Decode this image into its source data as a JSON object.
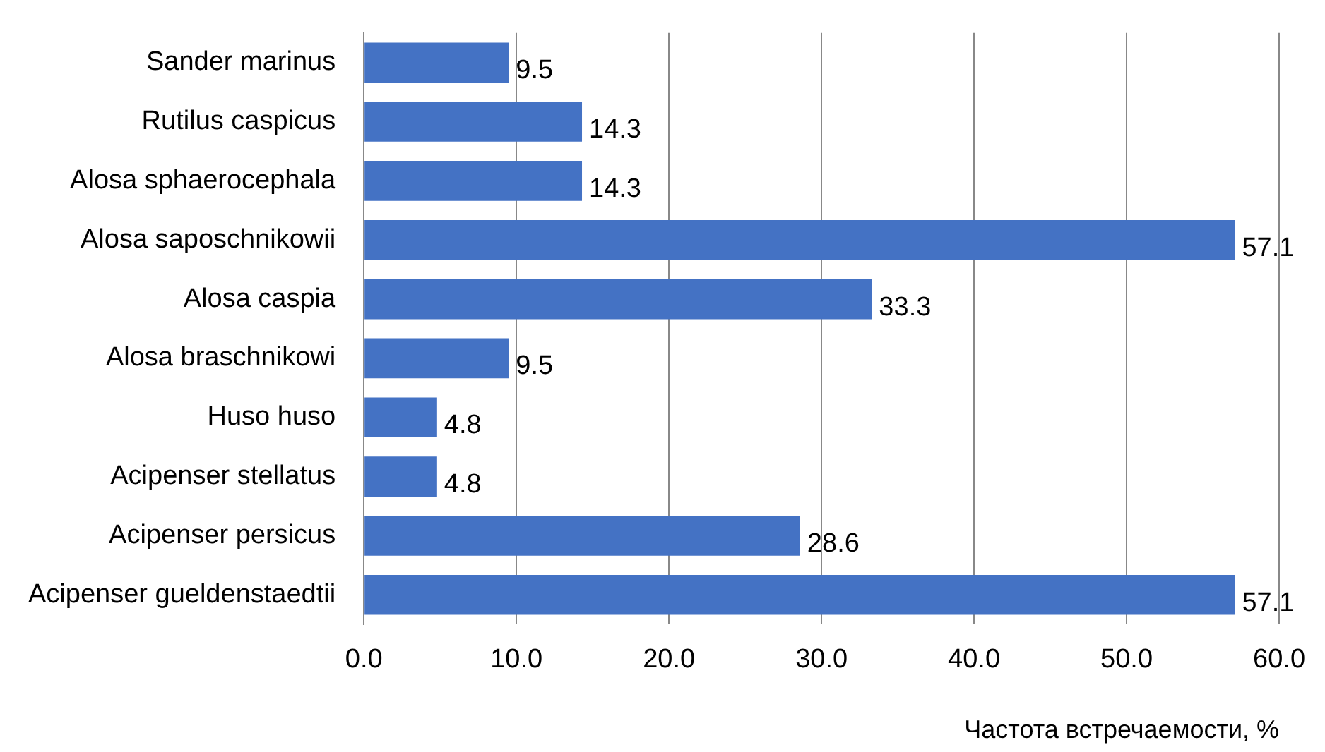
{
  "chart_data": {
    "type": "bar",
    "orientation": "horizontal",
    "xlabel": "Частота встречаемости, %",
    "categories": [
      "Sander marinus",
      "Rutilus caspicus",
      "Alosa sphaerocephala",
      "Alosa saposchnikowii",
      "Alosa caspia",
      "Alosa braschnikowi",
      "Huso huso",
      "Acipenser stellatus",
      "Acipenser persicus",
      "Acipenser gueldenstaedtii"
    ],
    "values": [
      9.5,
      14.3,
      14.3,
      57.1,
      33.3,
      9.5,
      4.8,
      4.8,
      28.6,
      57.1
    ],
    "color": "#4472c4",
    "xlim": [
      0,
      60
    ],
    "xticks": [
      {
        "value": 0,
        "label": "0.0"
      },
      {
        "value": 10,
        "label": "10.0"
      },
      {
        "value": 20,
        "label": "20.0"
      },
      {
        "value": 30,
        "label": "30.0"
      },
      {
        "value": 40,
        "label": "40.0"
      },
      {
        "value": 50,
        "label": "50.0"
      },
      {
        "value": 60,
        "label": "60.0"
      }
    ],
    "grid": "x",
    "data_labels": true,
    "legend": false
  }
}
